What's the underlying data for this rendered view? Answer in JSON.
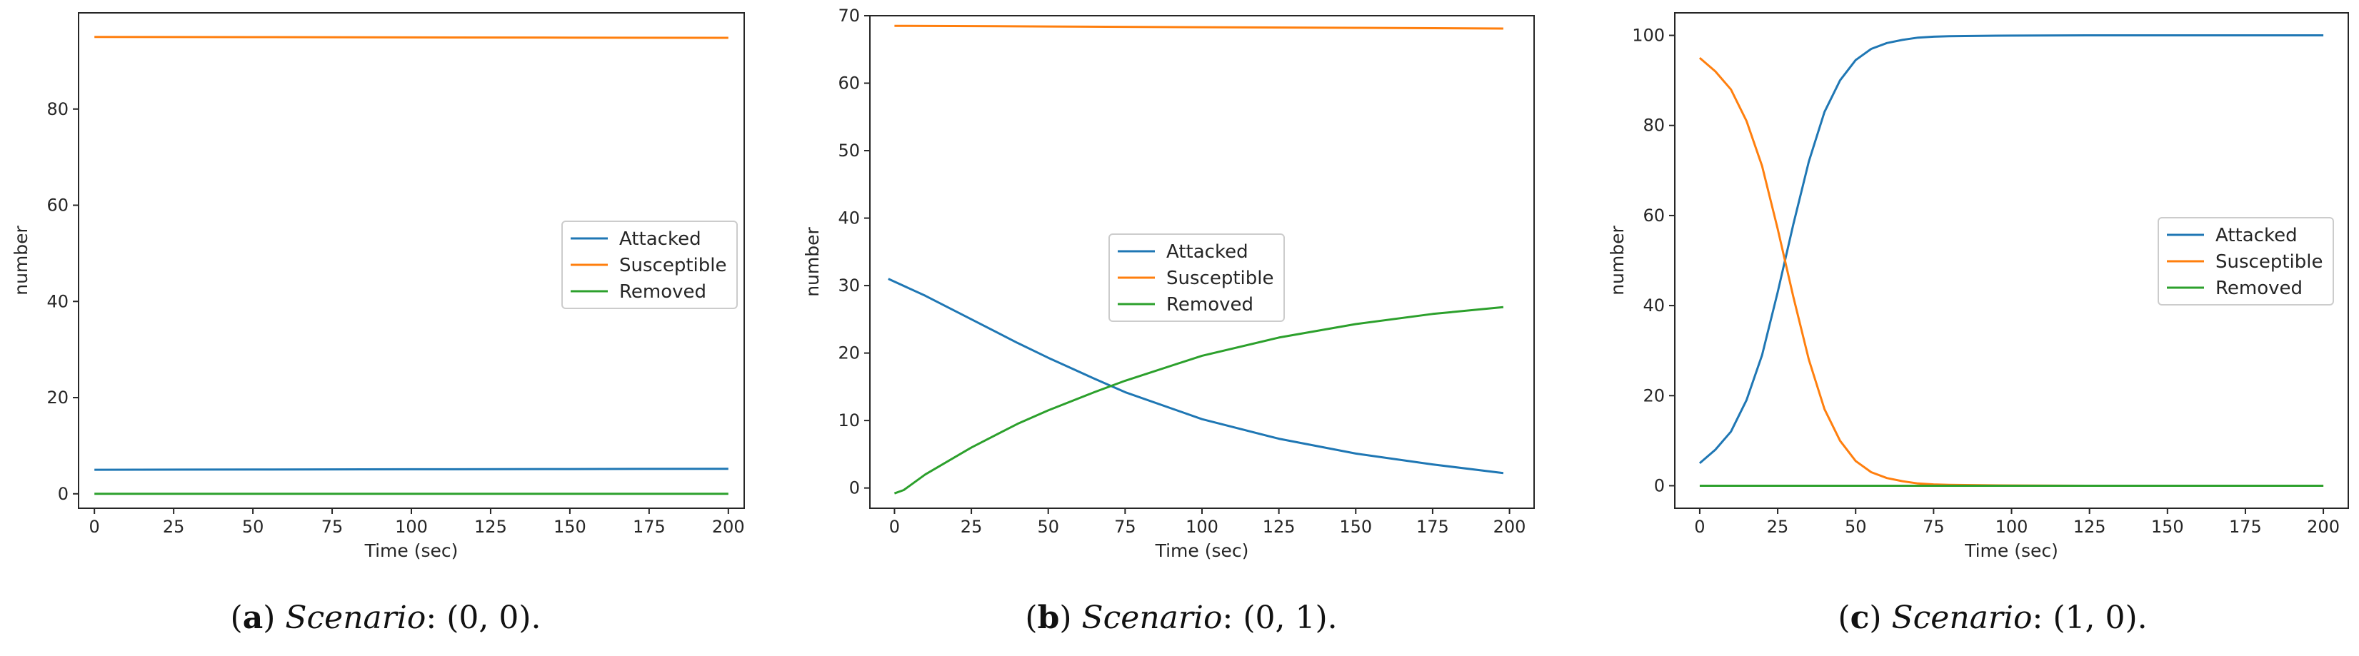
{
  "chart_data": [
    {
      "type": "line",
      "id": "a",
      "xlabel": "Time (sec)",
      "ylabel": "number",
      "xlim": [
        -5,
        205
      ],
      "ylim": [
        -3,
        100
      ],
      "xticks": [
        0,
        25,
        50,
        75,
        100,
        125,
        150,
        175,
        200
      ],
      "yticks": [
        0,
        20,
        40,
        60,
        80
      ],
      "legend_position": "center-right",
      "series": [
        {
          "name": "Attacked",
          "color": "#1f77b4",
          "x": [
            0,
            50,
            100,
            150,
            200
          ],
          "y": [
            5.0,
            5.05,
            5.1,
            5.15,
            5.2
          ]
        },
        {
          "name": "Susceptible",
          "color": "#ff7f0e",
          "x": [
            0,
            50,
            100,
            150,
            200
          ],
          "y": [
            95.0,
            94.95,
            94.9,
            94.85,
            94.8
          ]
        },
        {
          "name": "Removed",
          "color": "#2ca02c",
          "x": [
            0,
            50,
            100,
            150,
            200
          ],
          "y": [
            0.0,
            0.0,
            0.0,
            0.0,
            0.0
          ]
        }
      ],
      "caption": {
        "letter": "a",
        "label": "Scenario",
        "value": "(0, 0)."
      }
    },
    {
      "type": "line",
      "id": "b",
      "xlabel": "Time (sec)",
      "ylabel": "number",
      "xlim": [
        -8,
        208
      ],
      "ylim": [
        -3,
        70
      ],
      "xticks": [
        0,
        25,
        50,
        75,
        100,
        125,
        150,
        175,
        200
      ],
      "yticks": [
        0,
        10,
        20,
        30,
        40,
        50,
        60,
        70
      ],
      "legend_position": "center",
      "series": [
        {
          "name": "Attacked",
          "color": "#1f77b4",
          "x": [
            -2,
            10,
            25,
            40,
            50,
            65,
            75,
            100,
            125,
            150,
            175,
            198
          ],
          "y": [
            31.0,
            28.5,
            25.0,
            21.5,
            19.3,
            16.2,
            14.2,
            10.2,
            7.3,
            5.1,
            3.5,
            2.2
          ]
        },
        {
          "name": "Susceptible",
          "color": "#ff7f0e",
          "x": [
            0,
            50,
            100,
            150,
            198
          ],
          "y": [
            68.5,
            68.4,
            68.3,
            68.2,
            68.1
          ]
        },
        {
          "name": "Removed",
          "color": "#2ca02c",
          "x": [
            0,
            3,
            10,
            25,
            40,
            50,
            65,
            75,
            100,
            125,
            150,
            175,
            198
          ],
          "y": [
            -0.8,
            -0.3,
            2.0,
            6.0,
            9.5,
            11.5,
            14.2,
            15.9,
            19.6,
            22.3,
            24.3,
            25.8,
            26.8
          ]
        }
      ],
      "caption": {
        "letter": "b",
        "label": "Scenario",
        "value": "(0, 1)."
      }
    },
    {
      "type": "line",
      "id": "c",
      "xlabel": "Time (sec)",
      "ylabel": "number",
      "xlim": [
        -8,
        208
      ],
      "ylim": [
        -5,
        105
      ],
      "xticks": [
        0,
        25,
        50,
        75,
        100,
        125,
        150,
        175,
        200
      ],
      "yticks": [
        0,
        20,
        40,
        60,
        80,
        100
      ],
      "legend_position": "center-right",
      "series": [
        {
          "name": "Attacked",
          "color": "#1f77b4",
          "x": [
            0,
            5,
            10,
            15,
            20,
            25,
            30,
            35,
            40,
            45,
            50,
            55,
            60,
            65,
            70,
            75,
            80,
            90,
            100,
            125,
            150,
            175,
            200
          ],
          "y": [
            5,
            8,
            12,
            19,
            29,
            43,
            58,
            72,
            83,
            90,
            94.5,
            97,
            98.3,
            99,
            99.5,
            99.7,
            99.8,
            99.9,
            99.95,
            100,
            100,
            100,
            100
          ]
        },
        {
          "name": "Susceptible",
          "color": "#ff7f0e",
          "x": [
            0,
            5,
            10,
            15,
            20,
            25,
            30,
            35,
            40,
            45,
            50,
            55,
            60,
            65,
            70,
            75,
            80,
            90,
            100,
            125,
            150,
            175,
            200
          ],
          "y": [
            95,
            92,
            88,
            81,
            71,
            57,
            42,
            28,
            17,
            10,
            5.5,
            3,
            1.7,
            1,
            0.5,
            0.3,
            0.2,
            0.1,
            0.05,
            0,
            0,
            0,
            0
          ]
        },
        {
          "name": "Removed",
          "color": "#2ca02c",
          "x": [
            0,
            50,
            100,
            150,
            200
          ],
          "y": [
            0,
            0,
            0,
            0,
            0
          ]
        }
      ],
      "caption": {
        "letter": "c",
        "label": "Scenario",
        "value": "(1, 0)."
      }
    }
  ]
}
